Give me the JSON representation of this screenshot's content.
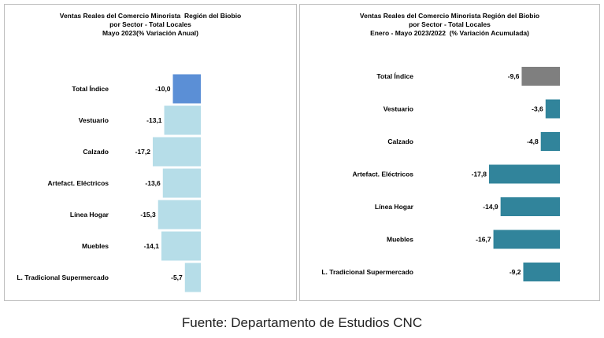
{
  "chart_data": [
    {
      "type": "bar",
      "orientation": "horizontal",
      "title": [
        "Ventas Reales del Comercio Minorista  Región del Biobio",
        "por Sector - Total Locales",
        "Mayo 2023(% Variación Anual)"
      ],
      "categories": [
        "Total Índice",
        "Vestuario",
        "Calzado",
        "Artefact. Eléctricos",
        "Línea Hogar",
        "Muebles",
        "L. Tradicional Supermercado"
      ],
      "values": [
        -10.0,
        -13.1,
        -17.2,
        -13.6,
        -15.3,
        -14.1,
        -5.7
      ],
      "value_labels": [
        "-10,0",
        "-13,1",
        "-17,2",
        "-13,6",
        "-15,3",
        "-14,1",
        "-5,7"
      ],
      "colors": [
        "#5b8fd6",
        "#b6dde8",
        "#b6dde8",
        "#b6dde8",
        "#b6dde8",
        "#b6dde8",
        "#b6dde8"
      ],
      "xlim": [
        -17.2,
        0
      ],
      "grid": false,
      "legend": "none"
    },
    {
      "type": "bar",
      "orientation": "horizontal",
      "title": [
        "Ventas Reales del Comercio Minorista Región del Biobio",
        "por Sector - Total Locales",
        "Enero - Mayo 2023/2022  (% Variación Acumulada)"
      ],
      "categories": [
        "Total Índice",
        "Vestuario",
        "Calzado",
        "Artefact. Eléctricos",
        "Línea Hogar",
        "Muebles",
        "L. Tradicional Supermercado"
      ],
      "values": [
        -9.6,
        -3.6,
        -4.8,
        -17.8,
        -14.9,
        -16.7,
        -9.2
      ],
      "value_labels": [
        "-9,6",
        "-3,6",
        "-4,8",
        "-17,8",
        "-14,9",
        "-16,7",
        "-9,2"
      ],
      "colors": [
        "#7f7f7f",
        "#31849b",
        "#31849b",
        "#31849b",
        "#31849b",
        "#31849b",
        "#31849b"
      ],
      "xlim": [
        -17.8,
        0
      ],
      "grid": false,
      "legend": "none"
    }
  ],
  "source": "Fuente: Departamento de Estudios CNC"
}
